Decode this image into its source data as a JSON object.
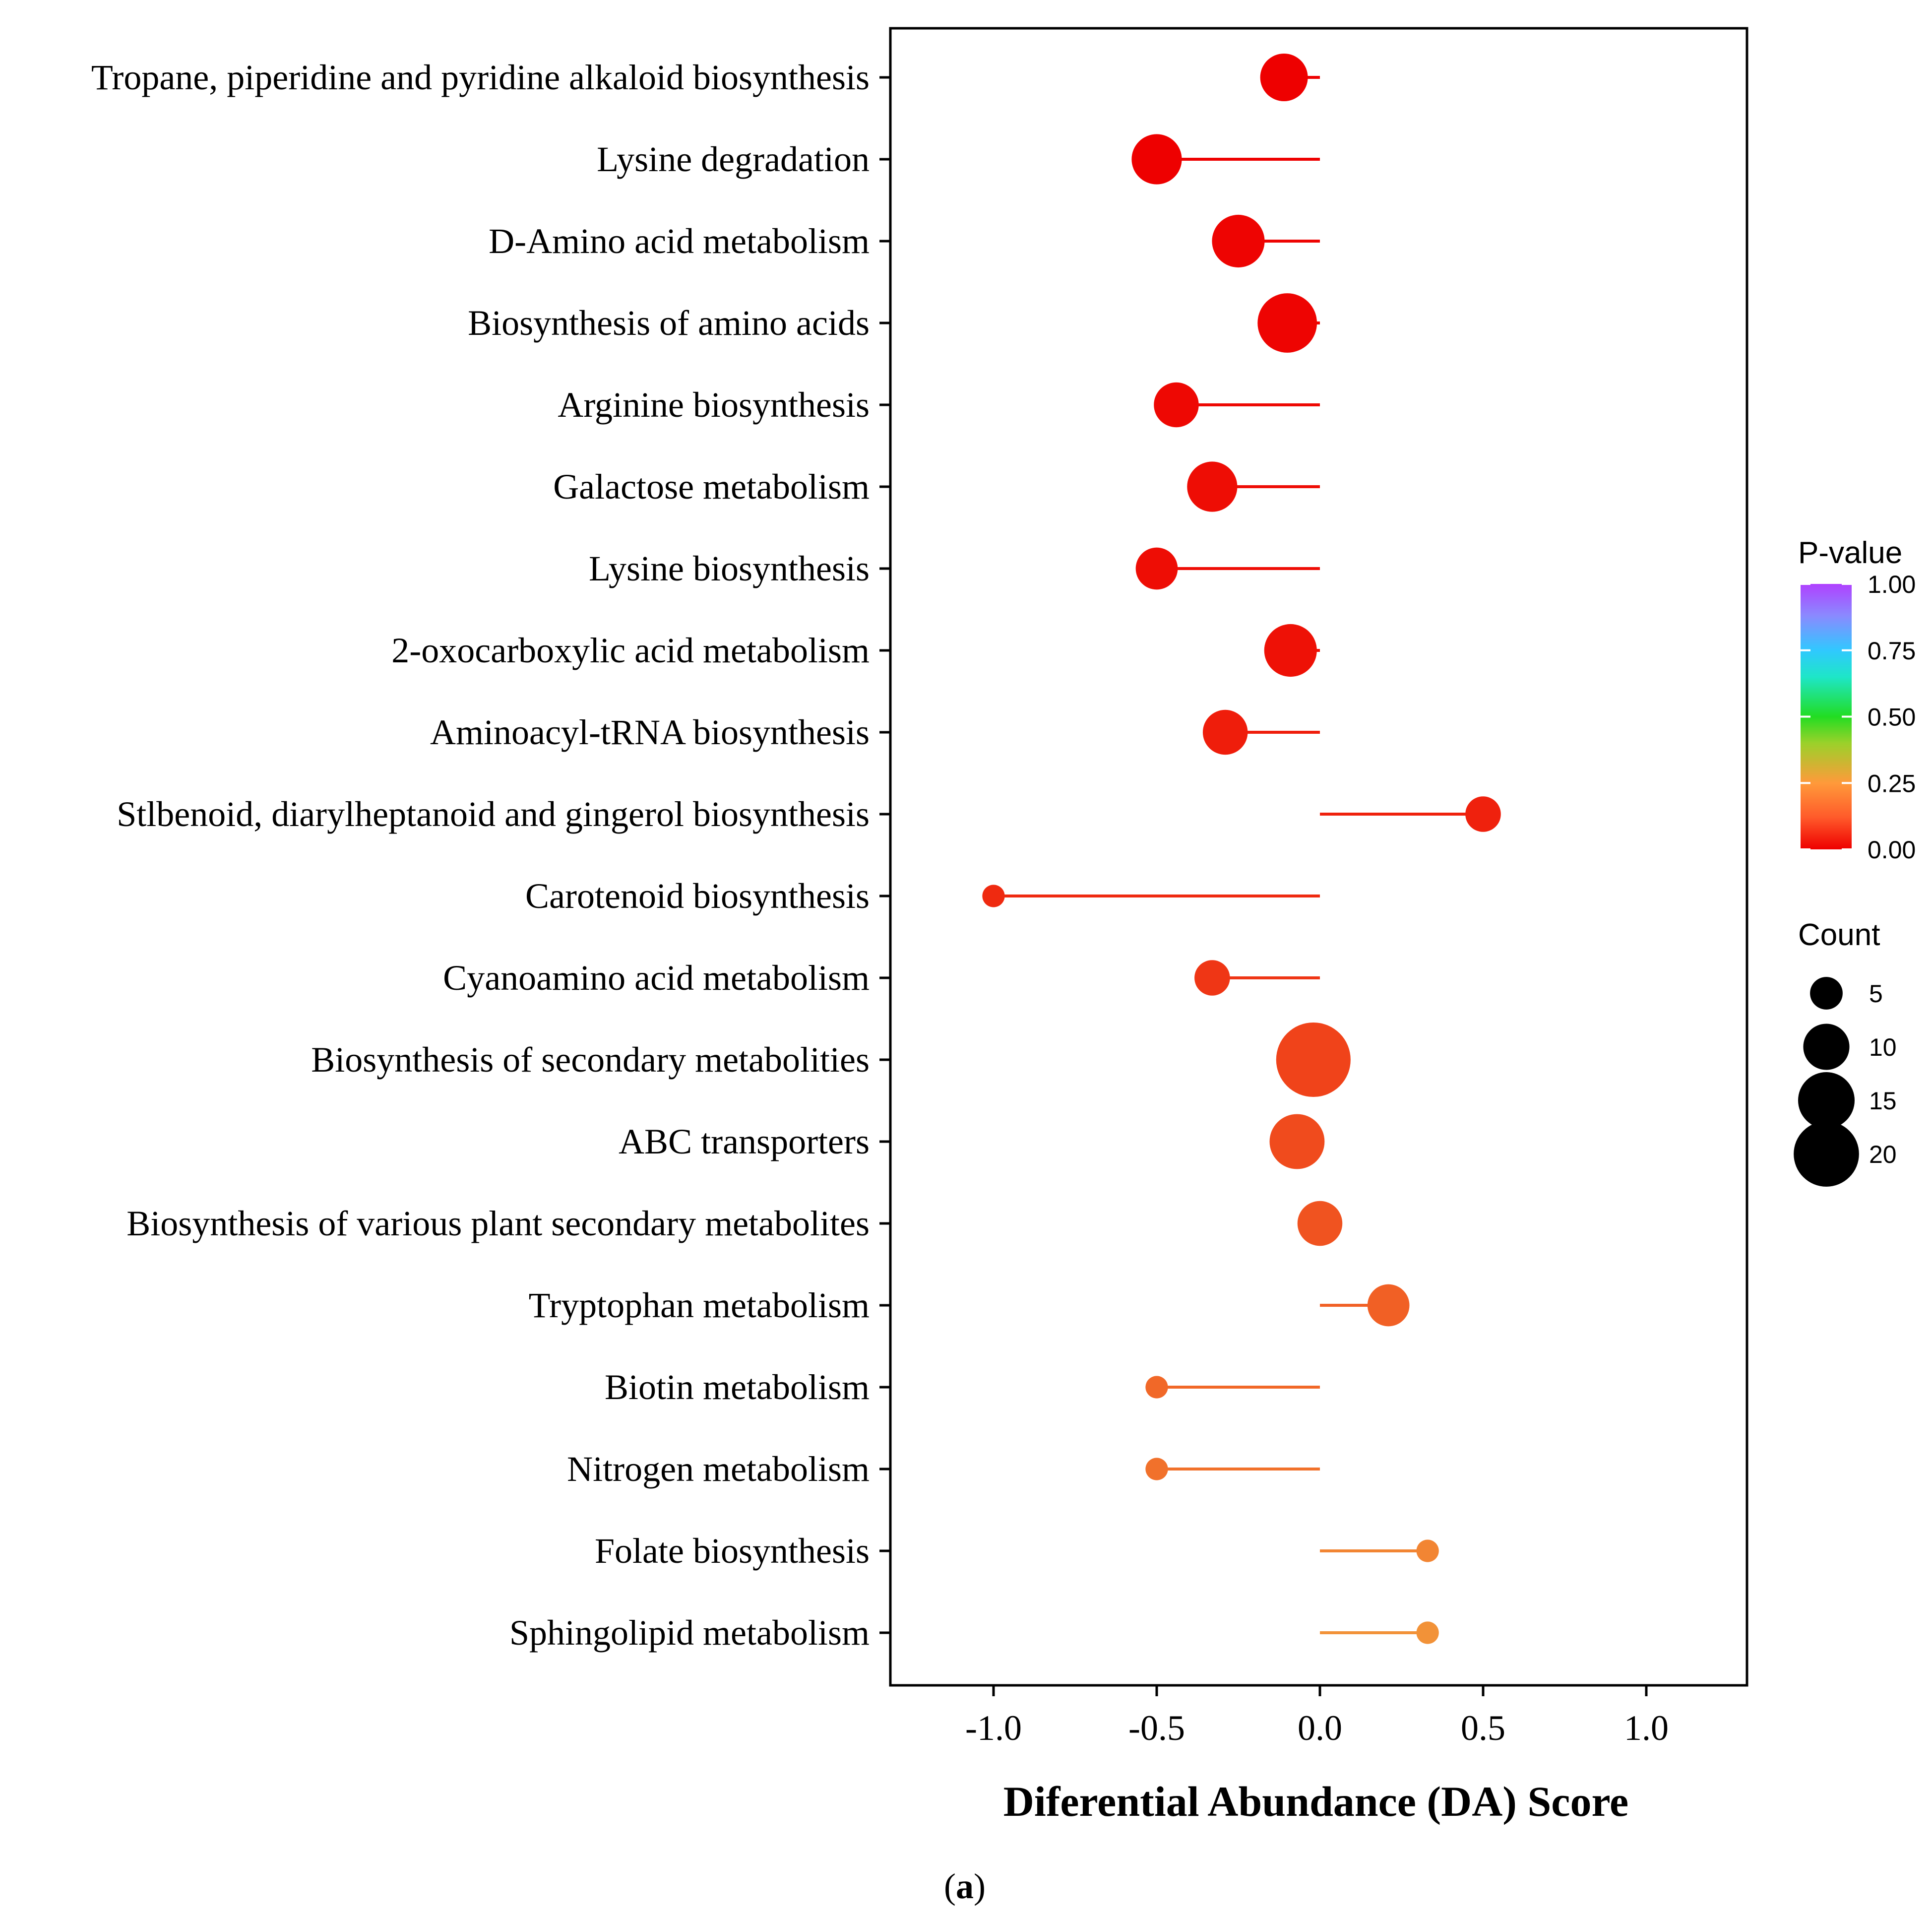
{
  "chart_data": {
    "type": "lollipop",
    "xlabel": "Diferential Abundance (DA) Score",
    "caption_open": "(",
    "caption_letter": "a",
    "caption_close": ")",
    "xlim": [
      -1.3,
      1.3
    ],
    "xticks": [
      -1.0,
      -0.5,
      0.0,
      0.5,
      1.0
    ],
    "xtick_labels": [
      "-1.0",
      "-0.5",
      "0.0",
      "0.5",
      "1.0"
    ],
    "categories": [
      "Tropane, piperidine and pyridine alkaloid biosynthesis",
      "Lysine degradation",
      "D-Amino acid metabolism",
      "Biosynthesis of amino acids",
      "Arginine biosynthesis",
      "Galactose metabolism",
      "Lysine biosynthesis",
      "2-oxocarboxylic acid metabolism",
      "Aminoacyl-tRNA biosynthesis",
      "Stlbenoid, diarylheptanoid and gingerol biosynthesis",
      "Carotenoid biosynthesis",
      "Cyanoamino acid metabolism",
      "Biosynthesis of secondary metabolities",
      "ABC transporters",
      "Biosynthesis of various plant secondary metabolites",
      "Tryptophan metabolism",
      "Biotin metabolism",
      "Nitrogen metabolism",
      "Folate biosynthesis",
      "Sphingolipid metabolism"
    ],
    "da_scores": [
      -0.11,
      -0.5,
      -0.25,
      -0.1,
      -0.44,
      -0.33,
      -0.5,
      -0.09,
      -0.29,
      0.5,
      -1.0,
      -0.33,
      -0.02,
      -0.07,
      0.0,
      0.21,
      -0.5,
      -0.5,
      0.33,
      0.33
    ],
    "counts": [
      9,
      10,
      11,
      14,
      8,
      10,
      7,
      11,
      8,
      5,
      2,
      5,
      22,
      12,
      8,
      7,
      2,
      2,
      2,
      2
    ],
    "p_values": [
      0.0,
      0.0,
      0.01,
      0.01,
      0.02,
      0.03,
      0.03,
      0.04,
      0.07,
      0.08,
      0.1,
      0.13,
      0.16,
      0.18,
      0.2,
      0.23,
      0.25,
      0.27,
      0.32,
      0.35
    ],
    "legend": {
      "color_title": "P-value",
      "color_ticks": [
        "1.00",
        "0.75",
        "0.50",
        "0.25",
        "0.00"
      ],
      "color_tick_values": [
        1.0,
        0.75,
        0.5,
        0.25,
        0.0
      ],
      "size_title": "Count",
      "size_values": [
        5,
        10,
        15,
        20
      ],
      "size_labels": [
        "5",
        "10",
        "15",
        "20"
      ],
      "placement": "right"
    },
    "colors": {
      "p_low": "#ee0000",
      "p_mid": "#ff8a33",
      "scale_stops": [
        "#ee0000",
        "#ff6a33",
        "#ffa040",
        "#8ed92a",
        "#22dd22",
        "#1ee6c8",
        "#30c8ff",
        "#8a8aff",
        "#b040ff"
      ]
    }
  }
}
